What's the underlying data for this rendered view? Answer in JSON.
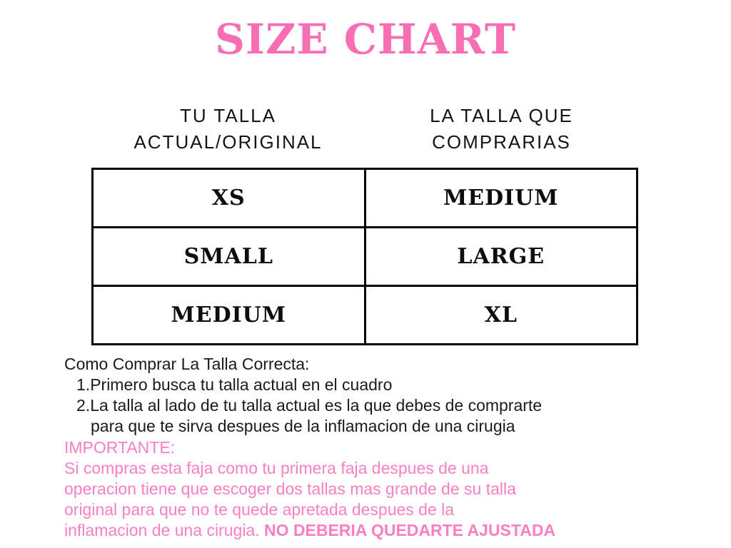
{
  "page": {
    "title": "SIZE CHART"
  },
  "columns": {
    "left": {
      "line1": "TU TALLA",
      "line2": "ACTUAL/ORIGINAL"
    },
    "right": {
      "line1": "LA TALLA QUE",
      "line2": "COMPRARIAS"
    }
  },
  "size_table": {
    "rows": [
      {
        "current": "XS",
        "buy": "MEDIUM"
      },
      {
        "current": "SMALL",
        "buy": "LARGE"
      },
      {
        "current": "MEDIUM",
        "buy": "XL"
      }
    ]
  },
  "instructions": {
    "heading": "Como Comprar La Talla Correcta:",
    "steps": [
      {
        "number": "1.",
        "text": "Primero busca tu talla actual en el cuadro"
      },
      {
        "number": "2.",
        "text": "La talla al lado de tu talla actual es la que debes de comprarte",
        "continuation": "para que te sirva despues de la inflamacion de una cirugia"
      }
    ]
  },
  "important": {
    "label": "IMPORTANTE:",
    "lines": [
      "Si compras esta faja como tu primera faja despues de una",
      "operacion tiene que escoger dos tallas mas grande de su talla",
      "original para que no te quede apretada despues de la"
    ],
    "last_line_normal": "inflamacion de una cirugia. ",
    "last_line_bold": "NO DEBERIA QUEDARTE AJUSTADA"
  },
  "colors": {
    "title_pink": "#f76eb4",
    "body_pink": "#fa7fc2",
    "table_border": "#000000",
    "text_black": "#1b1b1b"
  }
}
